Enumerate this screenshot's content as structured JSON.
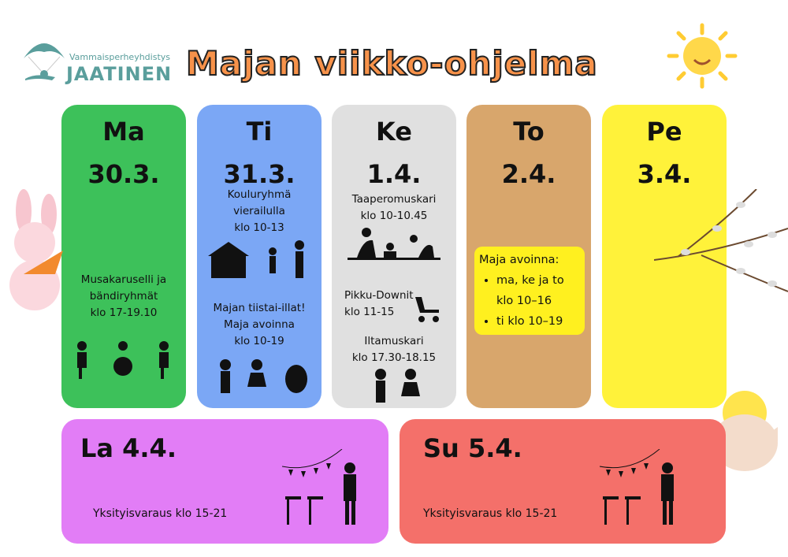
{
  "logo": {
    "small": "Vammaisperheyhdistys",
    "big": "JAATINEN"
  },
  "title": "Majan viikko-ohjelma",
  "days": [
    {
      "name": "Ma",
      "date": "30.3.",
      "color": "#3dc15a",
      "lines": [
        "Musakaruselli ja",
        "bändiryhmät",
        "klo 17-19.10"
      ]
    },
    {
      "name": "Ti",
      "date": "31.3.",
      "color": "#7ba7f5",
      "block1": [
        "Kouluryhmä",
        "vierailulla",
        "klo 10-13"
      ],
      "block2": [
        "Majan tiistai-illat!",
        "Maja avoinna",
        "klo 10-19"
      ]
    },
    {
      "name": "Ke",
      "date": "1.4.",
      "color": "#e0e0e0",
      "block1": [
        "Taaperomuskari",
        "klo 10-10.45"
      ],
      "block2": [
        "Pikku-Downit",
        "klo 11-15"
      ],
      "block3": [
        "Iltamuskari",
        "klo 17.30-18.15"
      ]
    },
    {
      "name": "To",
      "date": "2.4.",
      "color": "#d8a66c",
      "open_title": "Maja avoinna:",
      "open_items": [
        "ma, ke ja to klo 10–16",
        "ti klo 10–19"
      ]
    },
    {
      "name": "Pe",
      "date": "3.4.",
      "color": "#fff23a"
    }
  ],
  "weekend": [
    {
      "label": "La 4.4.",
      "text": "Yksityisvaraus klo 15-21",
      "color": "#e27df6"
    },
    {
      "label": "Su 5.4.",
      "text": "Yksityisvaraus klo 15-21",
      "color": "#f4706a"
    }
  ]
}
